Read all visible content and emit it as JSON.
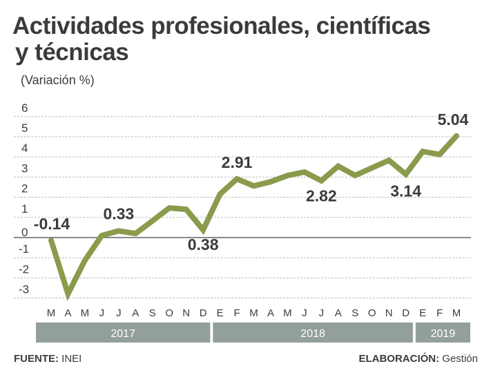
{
  "title_line1": "Actividades profesionales, científicas",
  "title_line2": "y técnicas",
  "subtitle": "(Variación %)",
  "footer": {
    "source_label": "FUENTE:",
    "source_value": "INEI",
    "credit_label": "ELABORACIÓN:",
    "credit_value": "Gestión"
  },
  "colors": {
    "line": "#8a9b4c",
    "year_band": "#929f9d",
    "text": "#3b3b3d"
  },
  "chart_data": {
    "type": "line",
    "title": "Actividades profesionales, científicas y técnicas",
    "ylabel": "(Variación %)",
    "ylim": [
      -3,
      6
    ],
    "yticks": [
      "6",
      "5",
      "4",
      "3",
      "2",
      "1",
      "0",
      "-1",
      "-2",
      "-3"
    ],
    "grid": true,
    "x": [
      "M",
      "A",
      "M",
      "J",
      "J",
      "A",
      "S",
      "O",
      "N",
      "D",
      "E",
      "F",
      "M",
      "A",
      "M",
      "J",
      "J",
      "A",
      "S",
      "O",
      "N",
      "D",
      "E",
      "F",
      "M"
    ],
    "years": [
      {
        "label": "2017",
        "months": 10
      },
      {
        "label": "2018",
        "months": 12
      },
      {
        "label": "2019",
        "months": 3
      }
    ],
    "values": [
      -0.14,
      -2.79,
      -1.13,
      0.1,
      0.33,
      0.2,
      0.83,
      1.47,
      1.4,
      0.38,
      2.15,
      2.91,
      2.56,
      2.77,
      3.08,
      3.25,
      2.82,
      3.54,
      3.08,
      3.46,
      3.83,
      3.14,
      4.27,
      4.12,
      5.04
    ],
    "data_labels": [
      {
        "index": 0,
        "text": "-0.14"
      },
      {
        "index": 4,
        "text": "0.33"
      },
      {
        "index": 9,
        "text": "0.38"
      },
      {
        "index": 11,
        "text": "2.91"
      },
      {
        "index": 16,
        "text": "2.82"
      },
      {
        "index": 21,
        "text": "3.14"
      },
      {
        "index": 24,
        "text": "5.04"
      }
    ]
  }
}
